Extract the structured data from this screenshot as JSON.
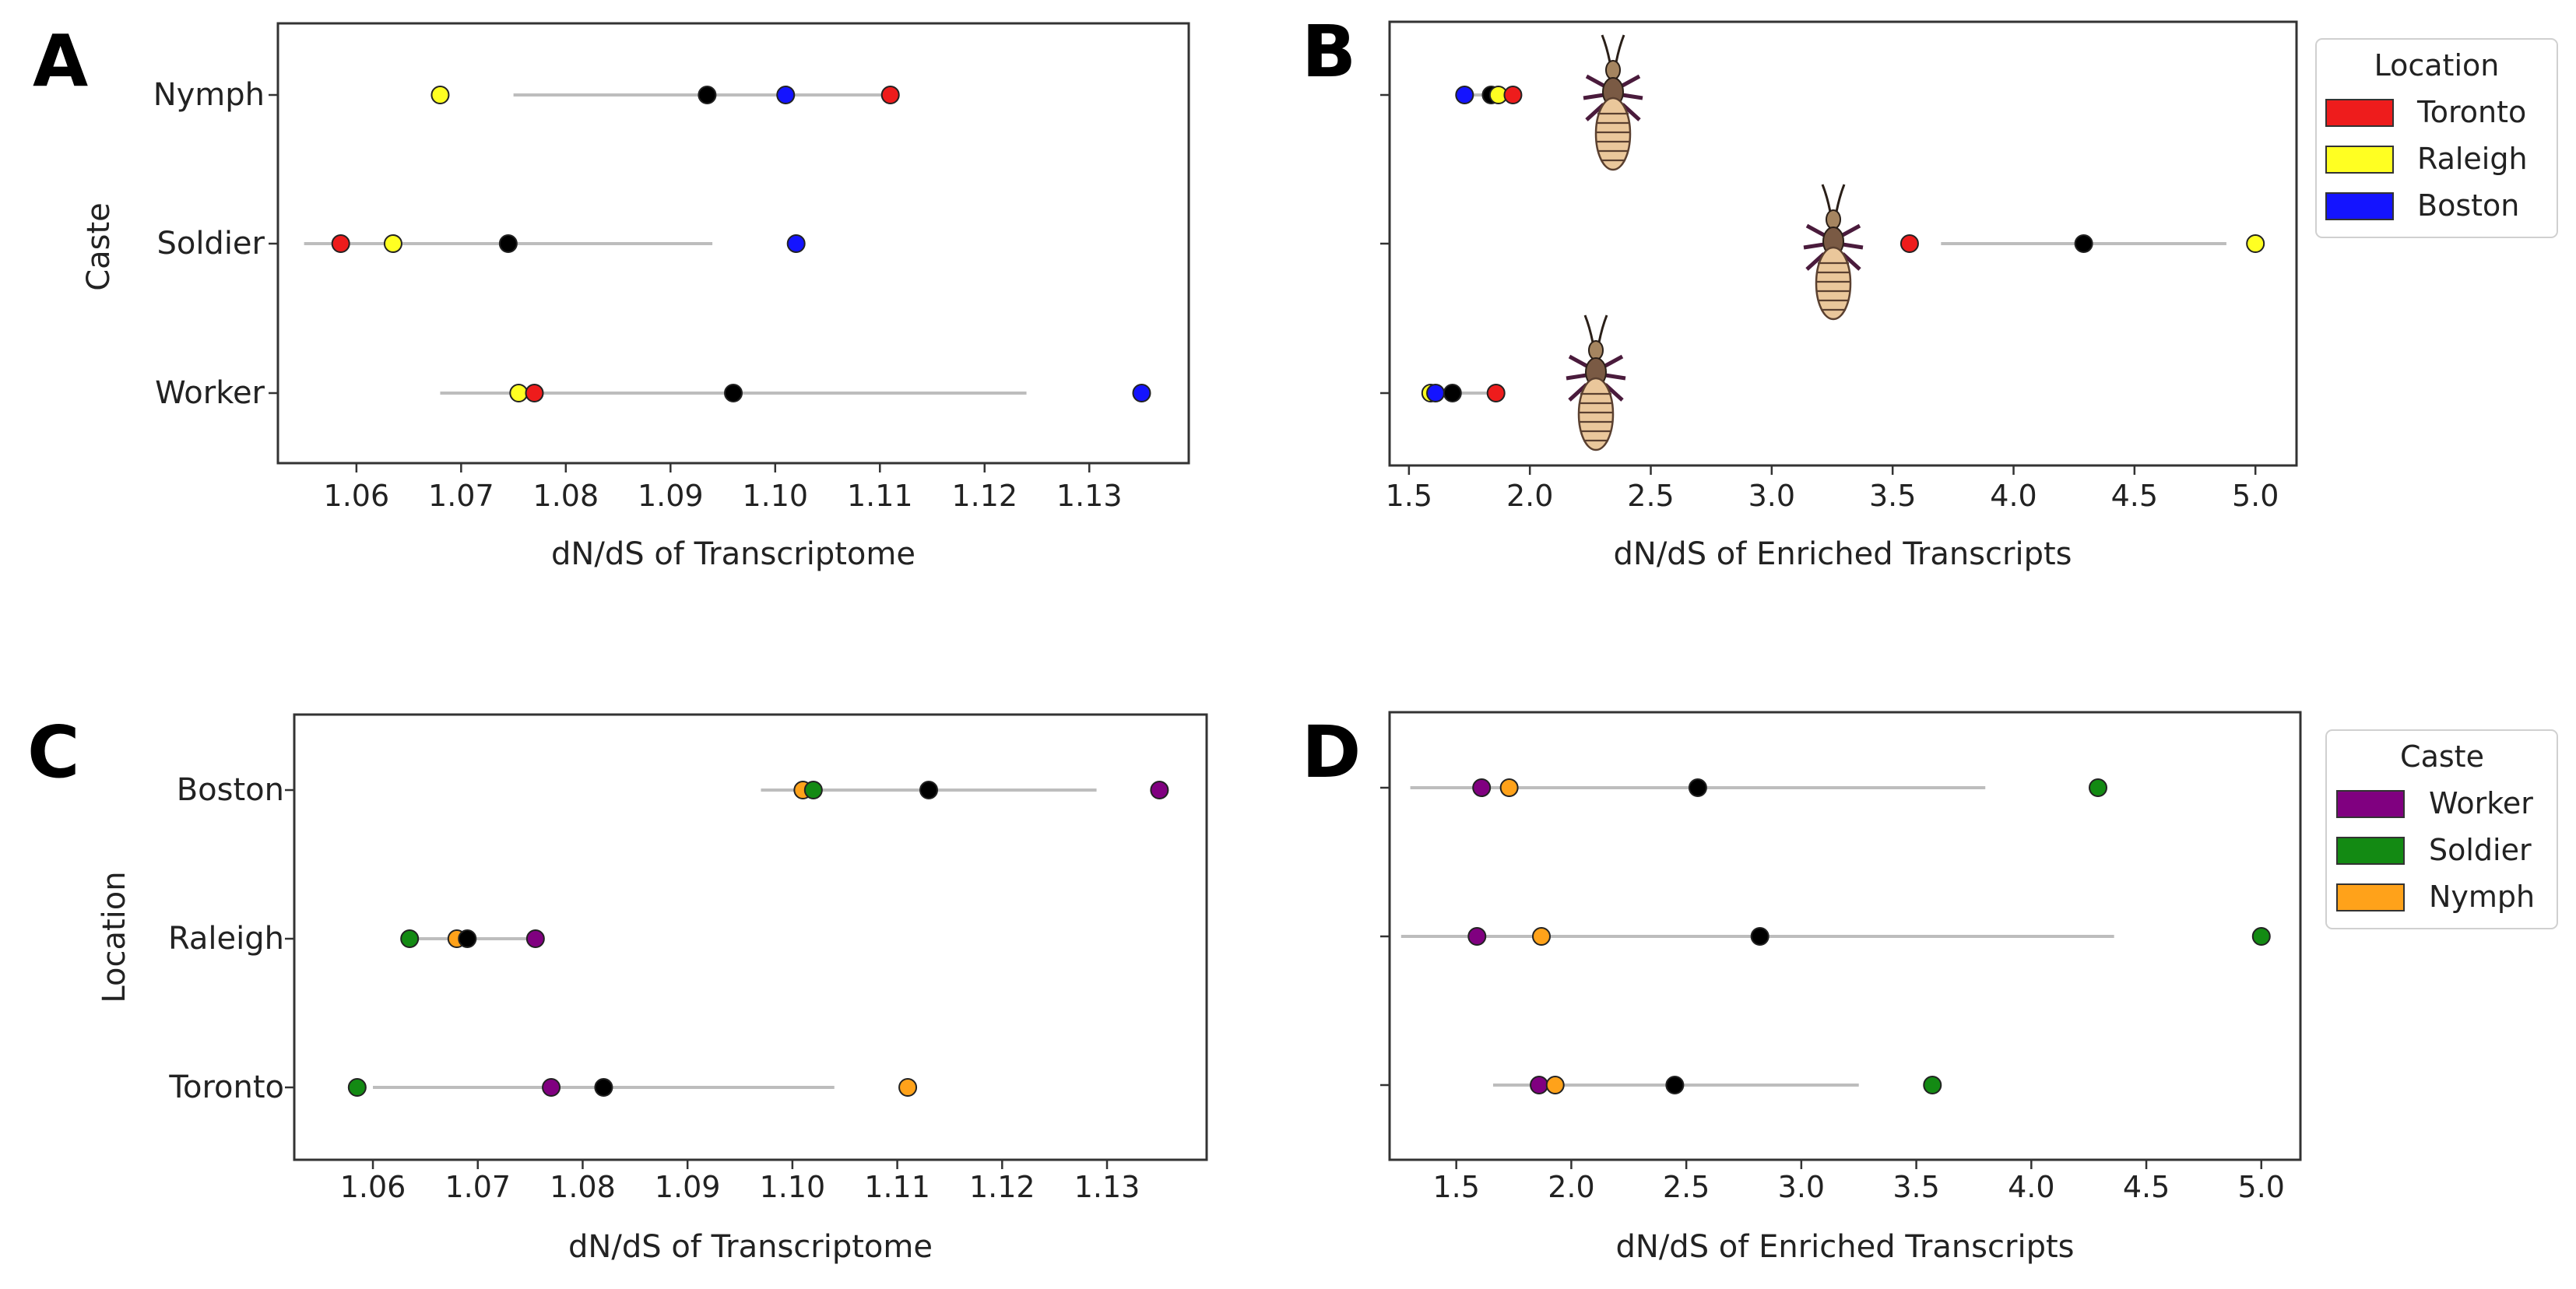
{
  "figure": {
    "panels": [
      "A",
      "B",
      "C",
      "D"
    ]
  },
  "legend_location": {
    "title": "Location",
    "items": [
      {
        "label": "Toronto",
        "color": "#ee1c1c"
      },
      {
        "label": "Raleigh",
        "color": "#ffff22"
      },
      {
        "label": "Boston",
        "color": "#1414ff"
      }
    ]
  },
  "legend_caste": {
    "title": "Caste",
    "items": [
      {
        "label": "Worker",
        "color": "#800080"
      },
      {
        "label": "Soldier",
        "color": "#138a13"
      },
      {
        "label": "Nymph",
        "color": "#ffa21a"
      }
    ]
  },
  "chart_data": [
    {
      "panel": "A",
      "type": "scatter",
      "xlabel": "dN/dS of Transcriptome",
      "ylabel": "Caste",
      "xlim": [
        1.0525,
        1.1395
      ],
      "xticks": [
        "1.06",
        "1.07",
        "1.08",
        "1.09",
        "1.10",
        "1.11",
        "1.12",
        "1.13"
      ],
      "categories": [
        "Nymph",
        "Soldier",
        "Worker"
      ],
      "interval": [
        [
          1.075,
          1.111
        ],
        [
          1.055,
          1.094
        ],
        [
          1.068,
          1.124
        ]
      ],
      "points": [
        {
          "category": "Nymph",
          "value": 1.068,
          "color": "#ffff22"
        },
        {
          "category": "Nymph",
          "value": 1.0935,
          "color": "#000000"
        },
        {
          "category": "Nymph",
          "value": 1.101,
          "color": "#1414ff"
        },
        {
          "category": "Nymph",
          "value": 1.111,
          "color": "#ee1c1c"
        },
        {
          "category": "Soldier",
          "value": 1.0585,
          "color": "#ee1c1c"
        },
        {
          "category": "Soldier",
          "value": 1.0635,
          "color": "#ffff22"
        },
        {
          "category": "Soldier",
          "value": 1.0745,
          "color": "#000000"
        },
        {
          "category": "Soldier",
          "value": 1.102,
          "color": "#1414ff"
        },
        {
          "category": "Worker",
          "value": 1.0755,
          "color": "#ffff22"
        },
        {
          "category": "Worker",
          "value": 1.077,
          "color": "#ee1c1c"
        },
        {
          "category": "Worker",
          "value": 1.096,
          "color": "#000000"
        },
        {
          "category": "Worker",
          "value": 1.135,
          "color": "#1414ff"
        }
      ]
    },
    {
      "panel": "B",
      "type": "scatter",
      "xlabel": "dN/dS of Enriched Transcripts",
      "ylabel": "",
      "xlim": [
        1.42,
        5.17
      ],
      "xticks": [
        "1.5",
        "2.0",
        "2.5",
        "3.0",
        "3.5",
        "4.0",
        "4.5",
        "5.0"
      ],
      "categories": [
        "Nymph",
        "Soldier",
        "Worker"
      ],
      "interval": [
        [
          1.72,
          1.93
        ],
        [
          3.7,
          4.88
        ],
        [
          1.58,
          1.86
        ]
      ],
      "points": [
        {
          "category": "Nymph",
          "value": 1.73,
          "color": "#1414ff"
        },
        {
          "category": "Nymph",
          "value": 1.84,
          "color": "#000000"
        },
        {
          "category": "Nymph",
          "value": 1.87,
          "color": "#ffff22"
        },
        {
          "category": "Nymph",
          "value": 1.93,
          "color": "#ee1c1c"
        },
        {
          "category": "Soldier",
          "value": 3.57,
          "color": "#ee1c1c"
        },
        {
          "category": "Soldier",
          "value": 4.29,
          "color": "#000000"
        },
        {
          "category": "Soldier",
          "value": 5.0,
          "color": "#ffff22"
        },
        {
          "category": "Worker",
          "value": 1.59,
          "color": "#ffff22"
        },
        {
          "category": "Worker",
          "value": 1.61,
          "color": "#1414ff"
        },
        {
          "category": "Worker",
          "value": 1.68,
          "color": "#000000"
        },
        {
          "category": "Worker",
          "value": 1.86,
          "color": "#ee1c1c"
        }
      ]
    },
    {
      "panel": "C",
      "type": "scatter",
      "xlabel": "dN/dS of Transcriptome",
      "ylabel": "Location",
      "xlim": [
        1.0525,
        1.1395
      ],
      "xticks": [
        "1.06",
        "1.07",
        "1.08",
        "1.09",
        "1.10",
        "1.11",
        "1.12",
        "1.13"
      ],
      "categories": [
        "Boston",
        "Raleigh",
        "Toronto"
      ],
      "interval": [
        [
          1.097,
          1.129
        ],
        [
          1.064,
          1.076
        ],
        [
          1.06,
          1.104
        ]
      ],
      "points": [
        {
          "category": "Boston",
          "value": 1.101,
          "color": "#ffa21a"
        },
        {
          "category": "Boston",
          "value": 1.102,
          "color": "#138a13"
        },
        {
          "category": "Boston",
          "value": 1.113,
          "color": "#000000"
        },
        {
          "category": "Boston",
          "value": 1.135,
          "color": "#800080"
        },
        {
          "category": "Raleigh",
          "value": 1.0635,
          "color": "#138a13"
        },
        {
          "category": "Raleigh",
          "value": 1.068,
          "color": "#ffa21a"
        },
        {
          "category": "Raleigh",
          "value": 1.069,
          "color": "#000000"
        },
        {
          "category": "Raleigh",
          "value": 1.0755,
          "color": "#800080"
        },
        {
          "category": "Toronto",
          "value": 1.0585,
          "color": "#138a13"
        },
        {
          "category": "Toronto",
          "value": 1.077,
          "color": "#800080"
        },
        {
          "category": "Toronto",
          "value": 1.082,
          "color": "#000000"
        },
        {
          "category": "Toronto",
          "value": 1.111,
          "color": "#ffa21a"
        }
      ]
    },
    {
      "panel": "D",
      "type": "scatter",
      "xlabel": "dN/dS of Enriched Transcripts",
      "ylabel": "",
      "xlim": [
        1.21,
        5.17
      ],
      "xticks": [
        "1.5",
        "2.0",
        "2.5",
        "3.0",
        "3.5",
        "4.0",
        "4.5",
        "5.0"
      ],
      "categories": [
        "Boston",
        "Raleigh",
        "Toronto"
      ],
      "interval": [
        [
          1.3,
          3.8
        ],
        [
          1.26,
          4.36
        ],
        [
          1.66,
          3.25
        ]
      ],
      "points": [
        {
          "category": "Boston",
          "value": 1.61,
          "color": "#800080"
        },
        {
          "category": "Boston",
          "value": 1.73,
          "color": "#ffa21a"
        },
        {
          "category": "Boston",
          "value": 2.55,
          "color": "#000000"
        },
        {
          "category": "Boston",
          "value": 4.29,
          "color": "#138a13"
        },
        {
          "category": "Raleigh",
          "value": 1.59,
          "color": "#800080"
        },
        {
          "category": "Raleigh",
          "value": 1.87,
          "color": "#ffa21a"
        },
        {
          "category": "Raleigh",
          "value": 2.82,
          "color": "#000000"
        },
        {
          "category": "Raleigh",
          "value": 5.0,
          "color": "#138a13"
        },
        {
          "category": "Toronto",
          "value": 1.86,
          "color": "#800080"
        },
        {
          "category": "Toronto",
          "value": 1.93,
          "color": "#ffa21a"
        },
        {
          "category": "Toronto",
          "value": 2.45,
          "color": "#000000"
        },
        {
          "category": "Toronto",
          "value": 3.57,
          "color": "#138a13"
        }
      ]
    }
  ]
}
